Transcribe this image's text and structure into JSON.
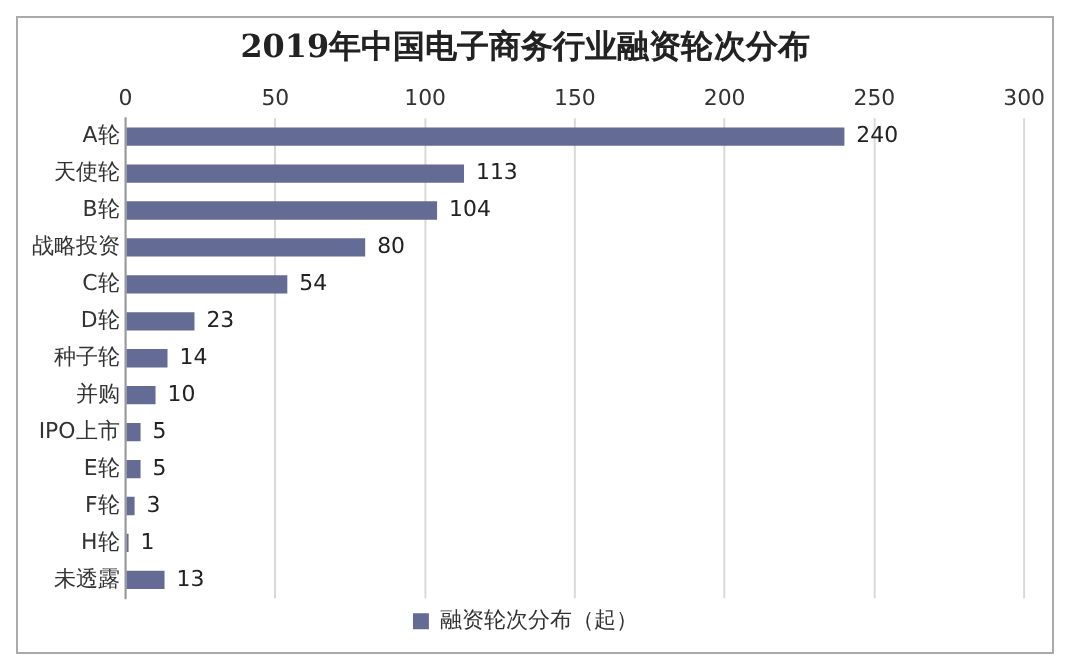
{
  "chart_data": {
    "type": "bar",
    "orientation": "horizontal",
    "title": "2019年中国电子商务行业融资轮次分布",
    "categories": [
      "A轮",
      "天使轮",
      "B轮",
      "战略投资",
      "C轮",
      "D轮",
      "种子轮",
      "并购",
      "IPO上市",
      "E轮",
      "F轮",
      "H轮",
      "未透露"
    ],
    "series": [
      {
        "name": "融资轮次分布（起）",
        "color": "#646b94",
        "values": [
          240,
          113,
          104,
          80,
          54,
          23,
          14,
          10,
          5,
          5,
          3,
          1,
          13
        ]
      }
    ],
    "xlim": [
      0,
      300
    ],
    "xticks": [
      0,
      50,
      100,
      150,
      200,
      250,
      300
    ],
    "grid": "x",
    "legend": "bottom",
    "data_labels": true
  }
}
